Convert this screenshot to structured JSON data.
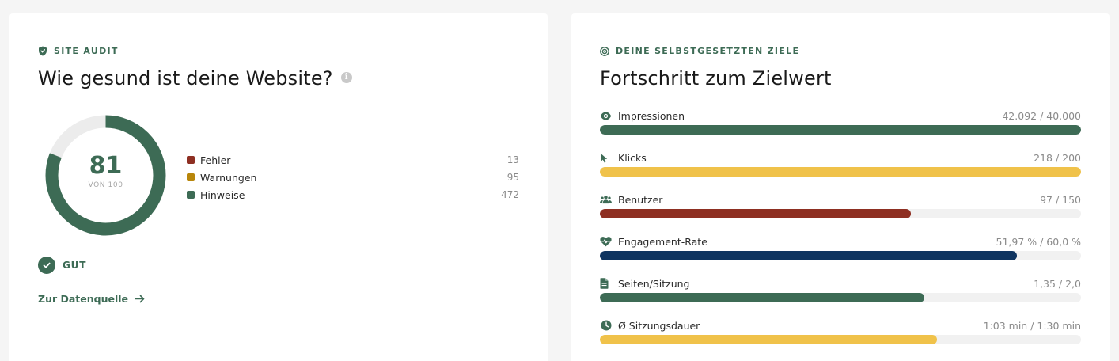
{
  "audit": {
    "eyebrow": "SITE AUDIT",
    "title": "Wie gesund ist deine Website?",
    "score": "81",
    "score_suffix": "VON 100",
    "score_fraction": 0.81,
    "legend": [
      {
        "label": "Fehler",
        "value": "13",
        "color": "#8e2f22"
      },
      {
        "label": "Warnungen",
        "value": "95",
        "color": "#b8860b"
      },
      {
        "label": "Hinweise",
        "value": "472",
        "color": "#3d6b55"
      }
    ],
    "status": "GUT",
    "link_label": "Zur Datenquelle"
  },
  "goals": {
    "eyebrow": "DEINE SELBSTGESETZTEN ZIELE",
    "title": "Fortschritt zum Zielwert",
    "items": [
      {
        "icon": "eye-icon",
        "label": "Impressionen",
        "value": "42.092 / 40.000",
        "progress": 1.0,
        "color": "#3d6b55"
      },
      {
        "icon": "cursor-icon",
        "label": "Klicks",
        "value": "218 / 200",
        "progress": 1.0,
        "color": "#f0c24a"
      },
      {
        "icon": "users-icon",
        "label": "Benutzer",
        "value": "97 / 150",
        "progress": 0.647,
        "color": "#8e2f22"
      },
      {
        "icon": "heart-pulse-icon",
        "label": "Engagement-Rate",
        "value": "51,97 % / 60,0 %",
        "progress": 0.866,
        "color": "#0f3460"
      },
      {
        "icon": "document-icon",
        "label": "Seiten/Sitzung",
        "value": "1,35 / 2,0",
        "progress": 0.675,
        "color": "#3d6b55"
      },
      {
        "icon": "clock-icon",
        "label": "Ø Sitzungsdauer",
        "value": "1:03 min / 1:30 min",
        "progress": 0.7,
        "color": "#f0c24a"
      }
    ]
  },
  "colors": {
    "accent": "#3d6b55",
    "track": "#ececec"
  }
}
